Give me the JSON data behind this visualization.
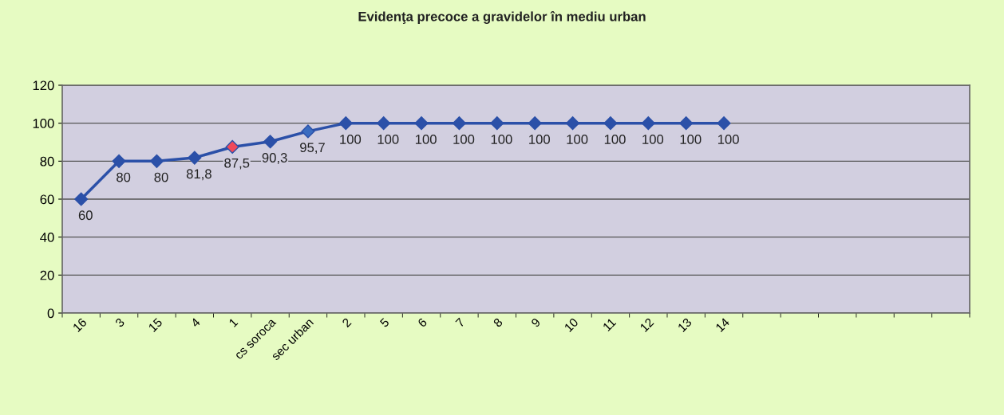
{
  "chart_data": {
    "type": "line",
    "title": "Evidenţa precoce a gravidelor în mediu urban",
    "categories": [
      "16",
      "3",
      "15",
      "4",
      "1",
      "cs soroca",
      "sec urban",
      "2",
      "5",
      "6",
      "7",
      "8",
      "9",
      "10",
      "11",
      "12",
      "13",
      "14",
      null,
      null,
      null,
      null,
      null,
      null
    ],
    "series": [
      {
        "color": "#2b50a8",
        "colors": [
          "#2b50a8",
          "#2b50a8",
          "#2b50a8",
          "#2b50a8",
          "#f04a5a",
          "#2b50a8",
          "#3a6cc0",
          "#2b50a8",
          "#2b50a8",
          "#2b50a8",
          "#2b50a8",
          "#2b50a8",
          "#2b50a8",
          "#2b50a8",
          "#2b50a8",
          "#2b50a8",
          "#2b50a8",
          "#2b50a8",
          null,
          null,
          null,
          null,
          null,
          null
        ],
        "values": [
          60,
          80,
          80,
          81.8,
          87.5,
          90.3,
          95.7,
          100,
          100,
          100,
          100,
          100,
          100,
          100,
          100,
          100,
          100,
          100,
          null,
          null,
          null,
          null,
          null,
          null
        ],
        "value_labels": [
          "60",
          "80",
          "80",
          "81,8",
          "87,5",
          "90,3",
          "95,7",
          "100",
          "100",
          "100",
          "100",
          "100",
          "100",
          "100",
          "100",
          "100",
          "100",
          "100",
          null,
          null,
          null,
          null,
          null,
          null
        ]
      }
    ],
    "ylim": [
      0,
      120
    ],
    "yticks": [
      0,
      20,
      40,
      60,
      80,
      100,
      120
    ],
    "grid": "y",
    "marker": "diamond",
    "line_style": "solid",
    "legend": false
  }
}
